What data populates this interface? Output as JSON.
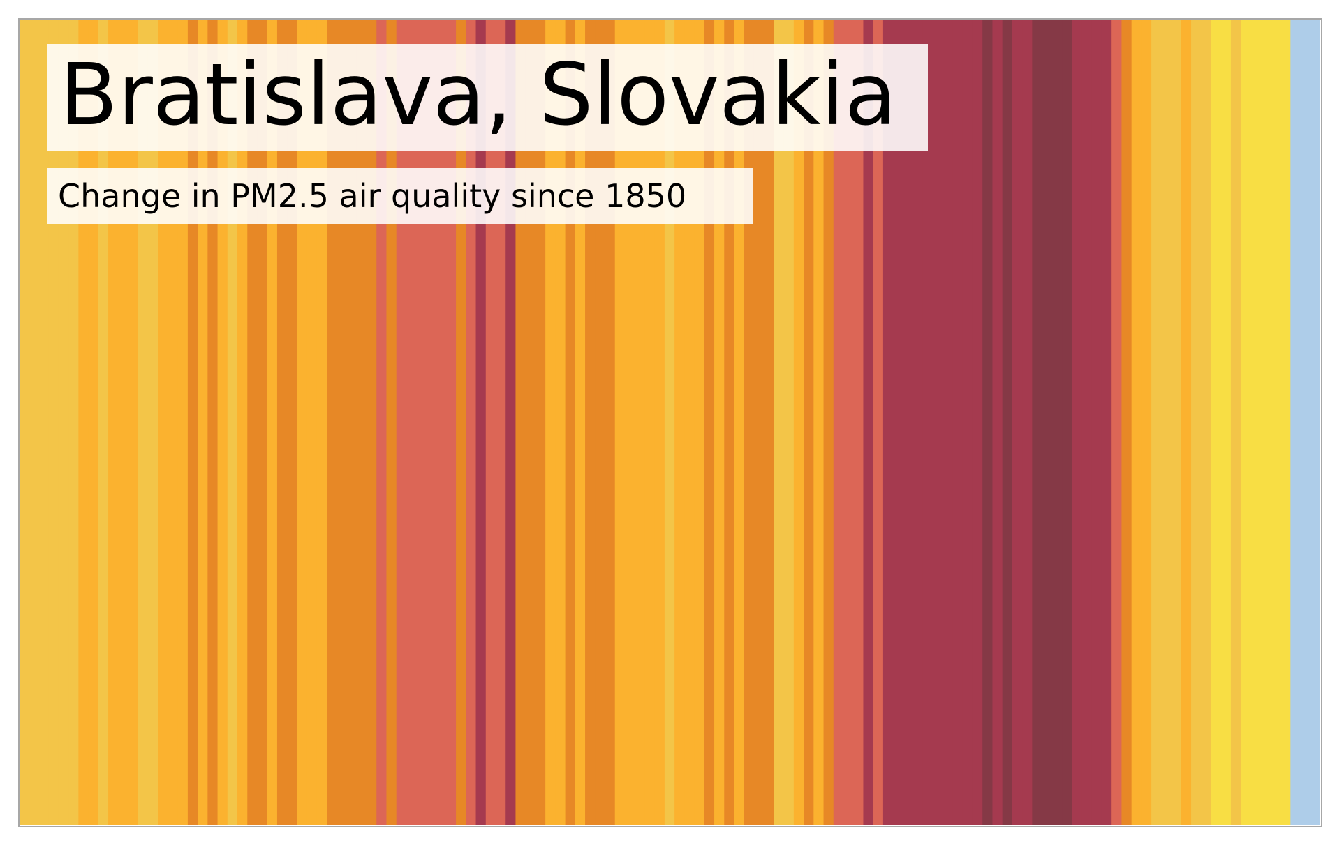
{
  "title": "Bratislava, Slovakia",
  "subtitle": "Change in PM2.5 air quality since 1850",
  "chart_data": {
    "type": "heatmap",
    "title": "Bratislava, Slovakia",
    "subtitle": "Change in PM2.5 air quality since 1850",
    "levels": [
      {
        "level": 0,
        "color": "#aecde9"
      },
      {
        "level": 1,
        "color": "#f8de44"
      },
      {
        "level": 2,
        "color": "#f3c548"
      },
      {
        "level": 3,
        "color": "#fbb22f"
      },
      {
        "level": 4,
        "color": "#e78826"
      },
      {
        "level": 5,
        "color": "#dc6656"
      },
      {
        "level": 6,
        "color": "#a53a4f"
      },
      {
        "level": 7,
        "color": "#853946"
      }
    ],
    "stripes": [
      2,
      2,
      2,
      2,
      2,
      2,
      3,
      3,
      2,
      3,
      3,
      3,
      2,
      2,
      3,
      3,
      3,
      4,
      3,
      4,
      3,
      2,
      3,
      4,
      4,
      3,
      4,
      4,
      3,
      3,
      3,
      4,
      4,
      4,
      4,
      4,
      5,
      4,
      5,
      5,
      5,
      5,
      5,
      5,
      4,
      5,
      6,
      5,
      5,
      6,
      4,
      4,
      4,
      3,
      3,
      4,
      3,
      4,
      4,
      4,
      3,
      3,
      3,
      3,
      3,
      2,
      3,
      3,
      3,
      4,
      3,
      4,
      3,
      4,
      4,
      4,
      2,
      2,
      3,
      4,
      3,
      4,
      5,
      5,
      5,
      6,
      5,
      6,
      6,
      6,
      6,
      6,
      6,
      6,
      6,
      6,
      6,
      7,
      6,
      7,
      6,
      6,
      7,
      7,
      7,
      7,
      6,
      6,
      6,
      6,
      5,
      4,
      3,
      3,
      2,
      2,
      2,
      3,
      2,
      2,
      1,
      1,
      2,
      1,
      1,
      1,
      1,
      1,
      0,
      0,
      0
    ]
  }
}
